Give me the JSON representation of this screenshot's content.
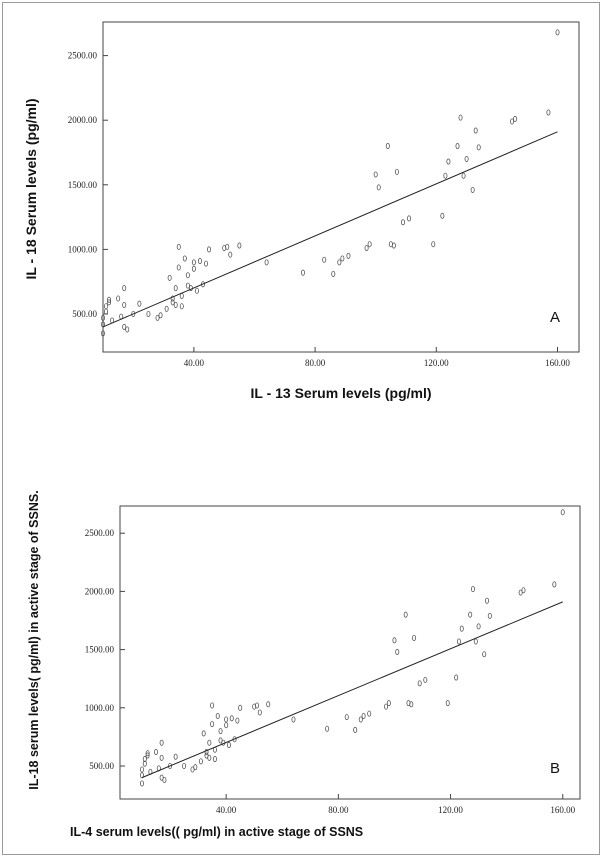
{
  "chart_data": [
    {
      "type": "scatter",
      "panel_label": "A",
      "xlabel": "IL - 13  Serum levels (pg/ml)",
      "ylabel": "IL - 18  Serum levels (pg/ml)",
      "xlim": [
        0,
        165
      ],
      "ylim": [
        300,
        2700
      ],
      "x_ticks": [
        40,
        80,
        120,
        160
      ],
      "x_tick_labels": [
        "40.00",
        "80.00",
        "120.00",
        "160.00"
      ],
      "y_ticks": [
        500,
        1000,
        1500,
        2000,
        2500
      ],
      "y_tick_labels": [
        "500.00",
        "1000.00",
        "1500.00",
        "2000.00",
        "2500.00"
      ],
      "fit_line": {
        "x": [
          10,
          160
        ],
        "y": [
          400,
          1910
        ]
      },
      "points": [
        [
          10,
          350
        ],
        [
          10,
          420
        ],
        [
          10,
          470
        ],
        [
          11,
          520
        ],
        [
          11,
          560
        ],
        [
          12,
          590
        ],
        [
          12,
          610
        ],
        [
          13,
          450
        ],
        [
          15,
          620
        ],
        [
          16,
          480
        ],
        [
          17,
          700
        ],
        [
          17,
          570
        ],
        [
          17,
          400
        ],
        [
          18,
          380
        ],
        [
          20,
          500
        ],
        [
          22,
          580
        ],
        [
          25,
          500
        ],
        [
          28,
          470
        ],
        [
          29,
          490
        ],
        [
          31,
          540
        ],
        [
          32,
          780
        ],
        [
          33,
          620
        ],
        [
          33,
          590
        ],
        [
          34,
          570
        ],
        [
          34,
          700
        ],
        [
          35,
          1020
        ],
        [
          35,
          860
        ],
        [
          36,
          640
        ],
        [
          36,
          560
        ],
        [
          37,
          930
        ],
        [
          38,
          800
        ],
        [
          38,
          720
        ],
        [
          39,
          700
        ],
        [
          40,
          850
        ],
        [
          40,
          900
        ],
        [
          41,
          680
        ],
        [
          42,
          910
        ],
        [
          43,
          730
        ],
        [
          44,
          890
        ],
        [
          45,
          1000
        ],
        [
          50,
          1010
        ],
        [
          51,
          1020
        ],
        [
          52,
          960
        ],
        [
          55,
          1030
        ],
        [
          64,
          900
        ],
        [
          76,
          820
        ],
        [
          83,
          920
        ],
        [
          86,
          810
        ],
        [
          88,
          900
        ],
        [
          89,
          930
        ],
        [
          91,
          950
        ],
        [
          97,
          1010
        ],
        [
          98,
          1040
        ],
        [
          100,
          1580
        ],
        [
          101,
          1480
        ],
        [
          104,
          1800
        ],
        [
          105,
          1040
        ],
        [
          106,
          1030
        ],
        [
          107,
          1600
        ],
        [
          109,
          1210
        ],
        [
          111,
          1240
        ],
        [
          119,
          1040
        ],
        [
          122,
          1260
        ],
        [
          123,
          1570
        ],
        [
          124,
          1680
        ],
        [
          127,
          1800
        ],
        [
          128,
          2020
        ],
        [
          129,
          1570
        ],
        [
          130,
          1700
        ],
        [
          132,
          1460
        ],
        [
          133,
          1920
        ],
        [
          134,
          1790
        ],
        [
          145,
          1990
        ],
        [
          146,
          2010
        ],
        [
          157,
          2060
        ],
        [
          160,
          2680
        ]
      ]
    },
    {
      "type": "scatter",
      "panel_label": "B",
      "xlabel": "IL-4 serum levels(( pg/ml) in active stage of SSNS",
      "ylabel": "IL-18 serum levels( pg/ml) in active stage of SSNS.",
      "xlim": [
        0,
        165
      ],
      "ylim": [
        300,
        2700
      ],
      "x_ticks": [
        40,
        80,
        120,
        160
      ],
      "x_tick_labels": [
        "40.00",
        "80.00",
        "120.00",
        "160.00"
      ],
      "y_ticks": [
        500,
        1000,
        1500,
        2000,
        2500
      ],
      "y_tick_labels": [
        "500.00",
        "1000.00",
        "1500.00",
        "2000.00",
        "2500.00"
      ],
      "fit_line": {
        "x": [
          10,
          160
        ],
        "y": [
          400,
          1910
        ]
      },
      "points": [
        [
          10,
          350
        ],
        [
          10,
          420
        ],
        [
          10,
          470
        ],
        [
          11,
          520
        ],
        [
          11,
          560
        ],
        [
          12,
          590
        ],
        [
          12,
          610
        ],
        [
          13,
          450
        ],
        [
          15,
          620
        ],
        [
          16,
          480
        ],
        [
          17,
          700
        ],
        [
          17,
          570
        ],
        [
          17,
          400
        ],
        [
          18,
          380
        ],
        [
          20,
          500
        ],
        [
          22,
          580
        ],
        [
          25,
          500
        ],
        [
          28,
          470
        ],
        [
          29,
          490
        ],
        [
          31,
          540
        ],
        [
          32,
          780
        ],
        [
          33,
          620
        ],
        [
          33,
          590
        ],
        [
          34,
          570
        ],
        [
          34,
          700
        ],
        [
          35,
          1020
        ],
        [
          35,
          860
        ],
        [
          36,
          640
        ],
        [
          36,
          560
        ],
        [
          37,
          930
        ],
        [
          38,
          800
        ],
        [
          38,
          720
        ],
        [
          39,
          700
        ],
        [
          40,
          850
        ],
        [
          40,
          900
        ],
        [
          41,
          680
        ],
        [
          42,
          910
        ],
        [
          43,
          730
        ],
        [
          44,
          890
        ],
        [
          45,
          1000
        ],
        [
          50,
          1010
        ],
        [
          51,
          1020
        ],
        [
          52,
          960
        ],
        [
          55,
          1030
        ],
        [
          64,
          900
        ],
        [
          76,
          820
        ],
        [
          83,
          920
        ],
        [
          86,
          810
        ],
        [
          88,
          900
        ],
        [
          89,
          930
        ],
        [
          91,
          950
        ],
        [
          97,
          1010
        ],
        [
          98,
          1040
        ],
        [
          100,
          1580
        ],
        [
          101,
          1480
        ],
        [
          104,
          1800
        ],
        [
          105,
          1040
        ],
        [
          106,
          1030
        ],
        [
          107,
          1600
        ],
        [
          109,
          1210
        ],
        [
          111,
          1240
        ],
        [
          119,
          1040
        ],
        [
          122,
          1260
        ],
        [
          123,
          1570
        ],
        [
          124,
          1680
        ],
        [
          127,
          1800
        ],
        [
          128,
          2020
        ],
        [
          129,
          1570
        ],
        [
          130,
          1700
        ],
        [
          132,
          1460
        ],
        [
          133,
          1920
        ],
        [
          134,
          1790
        ],
        [
          145,
          1990
        ],
        [
          146,
          2010
        ],
        [
          157,
          2060
        ],
        [
          160,
          2680
        ]
      ]
    }
  ]
}
